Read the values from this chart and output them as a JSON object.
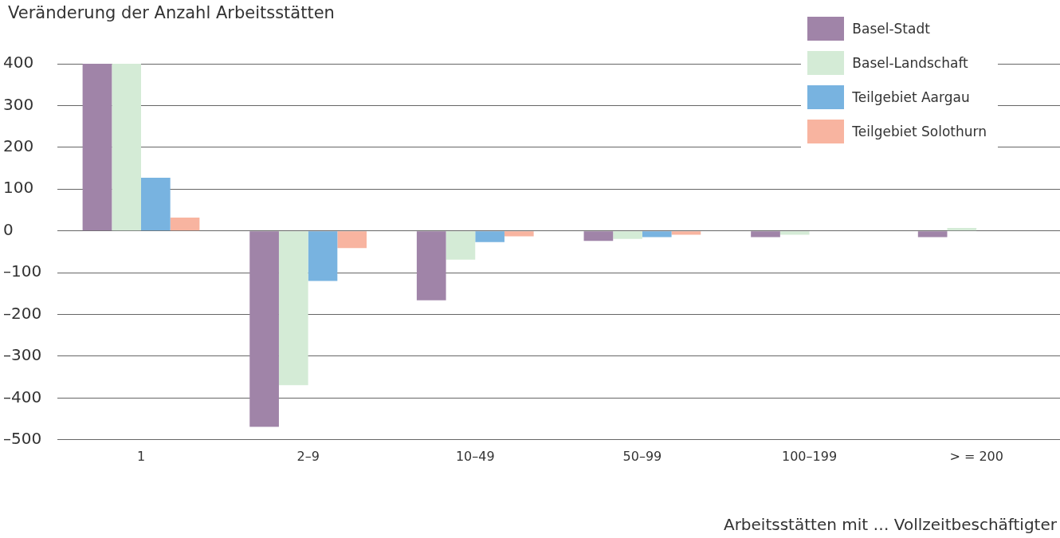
{
  "chart_data": {
    "type": "bar",
    "title": "Veränderung der Anzahl Arbeitsstätten",
    "xlabel": "Arbeitsstätten mit … Vollzeitbeschäftigter",
    "categories": [
      "1",
      "2–9",
      "10–49",
      "50–99",
      "100–199",
      "> = 200"
    ],
    "series": [
      {
        "name": "Basel-Stadt",
        "color": "#a084a8",
        "values": [
          400,
          -469,
          -166,
          -24,
          -15,
          -15
        ]
      },
      {
        "name": "Basel-Landschaft",
        "color": "#d4ebd6",
        "values": [
          400,
          -369,
          -69,
          -19,
          -9,
          7
        ]
      },
      {
        "name": "Teilgebiet Aargau",
        "color": "#78b3e0",
        "values": [
          127,
          -120,
          -27,
          -15,
          null,
          null
        ]
      },
      {
        "name": "Teilgebiet Solothurn",
        "color": "#f8b4a0",
        "values": [
          32,
          -41,
          -13,
          -9,
          null,
          null
        ]
      }
    ],
    "ylim": [
      -500,
      400
    ],
    "yticks": [
      {
        "value": -500,
        "label": "–500"
      },
      {
        "value": -400,
        "label": "–400"
      },
      {
        "value": -300,
        "label": "–300"
      },
      {
        "value": -200,
        "label": "–200"
      },
      {
        "value": -100,
        "label": "–100"
      },
      0,
      100,
      200,
      300,
      400
    ],
    "grid": "y",
    "legend": "top right"
  }
}
